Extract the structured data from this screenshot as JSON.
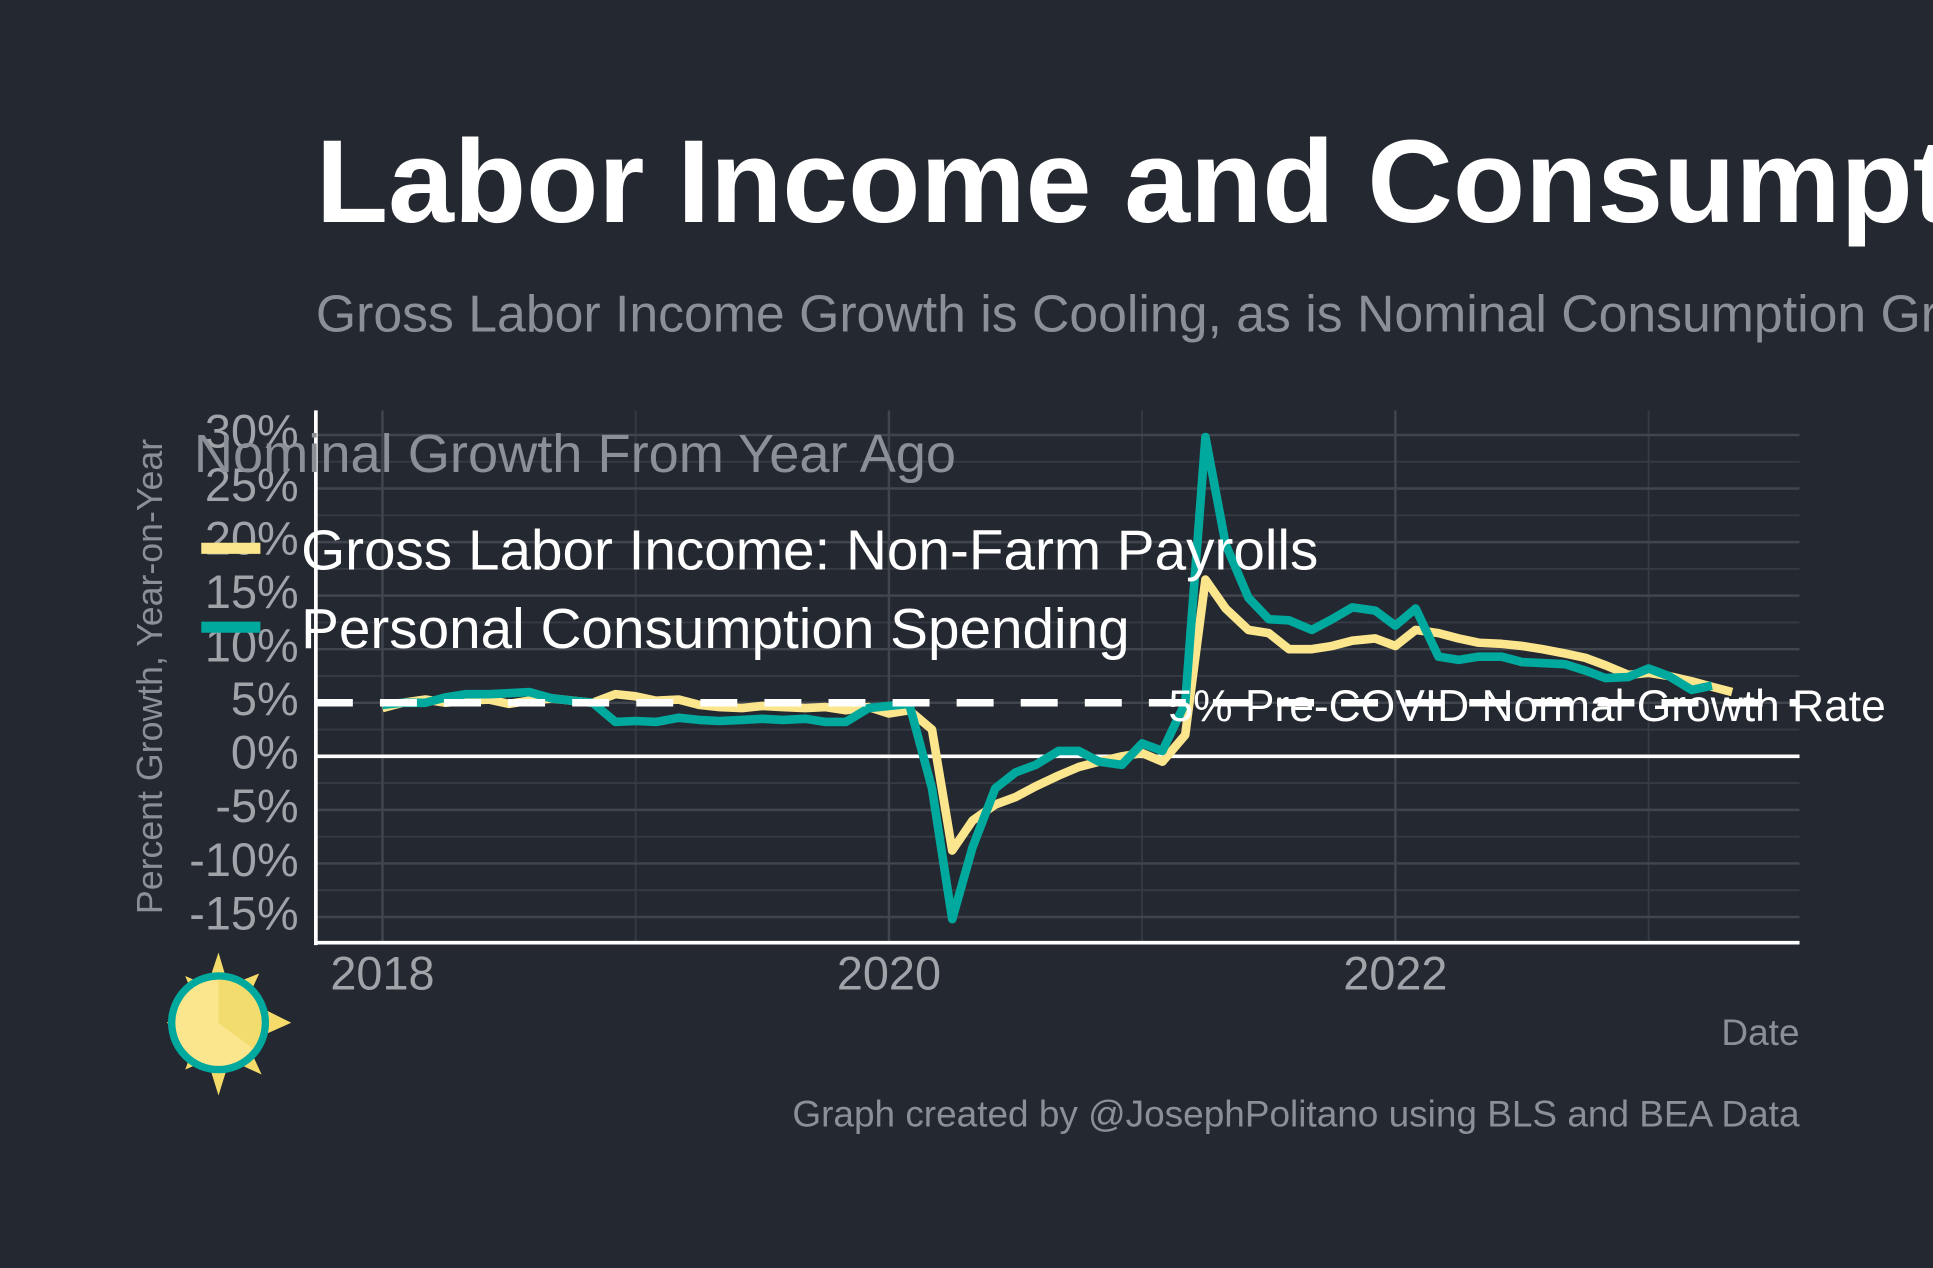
{
  "chart_data": {
    "type": "line",
    "title": "Labor Income and Consumption",
    "subtitle": "Gross Labor Income Growth is Cooling, as is Nominal Consumption Growth",
    "legend_title": "Nominal Growth From Year Ago",
    "y_label": "Percent Growth, Year-on-Year",
    "x_label": "Date",
    "caption": "Graph created by @JosephPolitano using BLS and BEA Data",
    "x": [
      2018,
      2018.08,
      2018.17,
      2018.25,
      2018.33,
      2018.42,
      2018.5,
      2018.58,
      2018.67,
      2018.75,
      2018.83,
      2018.92,
      2019,
      2019.08,
      2019.17,
      2019.25,
      2019.33,
      2019.42,
      2019.5,
      2019.58,
      2019.67,
      2019.75,
      2019.83,
      2019.92,
      2020,
      2020.08,
      2020.17,
      2020.25,
      2020.33,
      2020.42,
      2020.5,
      2020.58,
      2020.67,
      2020.75,
      2020.83,
      2020.92,
      2021,
      2021.08,
      2021.17,
      2021.25,
      2021.33,
      2021.42,
      2021.5,
      2021.58,
      2021.67,
      2021.75,
      2021.83,
      2021.92,
      2022,
      2022.08,
      2022.17,
      2022.25,
      2022.33,
      2022.42,
      2022.5,
      2022.58,
      2022.67,
      2022.75,
      2022.83,
      2022.92,
      2023,
      2023.08,
      2023.17,
      2023.25,
      2023.33
    ],
    "series": [
      {
        "name": "Gross Labor Income: Non-Farm Payrolls",
        "color": "#fbe58d",
        "values": [
          4.5,
          5.0,
          5.3,
          5.0,
          5.2,
          5.3,
          4.9,
          5.2,
          5.4,
          5.2,
          5.0,
          5.8,
          5.6,
          5.2,
          5.3,
          4.8,
          4.6,
          4.5,
          4.7,
          4.6,
          4.5,
          4.6,
          4.3,
          4.6,
          4.0,
          4.3,
          2.5,
          -8.8,
          -6.0,
          -4.5,
          -3.8,
          -2.8,
          -1.8,
          -1.0,
          -0.5,
          0.0,
          0.3,
          -0.5,
          2.0,
          16.5,
          13.8,
          11.8,
          11.5,
          10.0,
          10.0,
          10.3,
          10.8,
          11.0,
          10.3,
          11.8,
          11.5,
          11.0,
          10.6,
          10.5,
          10.3,
          10.0,
          9.6,
          9.2,
          8.5,
          7.6,
          7.8,
          7.5,
          7.0,
          6.5,
          6.0
        ]
      },
      {
        "name": "Personal Consumption Spending",
        "color": "#00a99d",
        "values": [
          4.8,
          5.0,
          5.0,
          5.5,
          5.8,
          5.8,
          5.9,
          6.0,
          5.4,
          5.2,
          5.0,
          3.2,
          3.3,
          3.2,
          3.6,
          3.4,
          3.3,
          3.4,
          3.5,
          3.4,
          3.5,
          3.2,
          3.2,
          4.5,
          4.7,
          4.9,
          -3.0,
          -15.2,
          -8.5,
          -3.0,
          -1.5,
          -0.8,
          0.5,
          0.5,
          -0.5,
          -0.8,
          1.2,
          0.5,
          5.0,
          29.8,
          19.8,
          14.8,
          12.8,
          12.7,
          11.8,
          12.8,
          13.9,
          13.6,
          12.2,
          13.8,
          9.3,
          9.0,
          9.3,
          9.3,
          8.8,
          8.7,
          8.6,
          8.0,
          7.3,
          7.4,
          8.2,
          7.5,
          6.2,
          6.6,
          null
        ]
      }
    ],
    "xlim": [
      2017.737,
      2023.596
    ],
    "xticks": [
      2018,
      2020,
      2022
    ],
    "xminorticks": [
      2019,
      2021,
      2023
    ],
    "ylim": [
      -17.4,
      32.3
    ],
    "yticks": [
      {
        "value": -15,
        "label": "-15%"
      },
      {
        "value": -10,
        "label": "-10%"
      },
      {
        "value": -5,
        "label": "-5%"
      },
      {
        "value": 0,
        "label": "0%"
      },
      {
        "value": 5,
        "label": "5%"
      },
      {
        "value": 10,
        "label": "10%"
      },
      {
        "value": 15,
        "label": "15%"
      },
      {
        "value": 20,
        "label": "20%"
      },
      {
        "value": 25,
        "label": "25%"
      },
      {
        "value": 30,
        "label": "30%"
      }
    ],
    "yminorticks": [
      -12.5,
      -7.5,
      -2.5,
      2.5,
      7.5,
      12.5,
      17.5,
      22.5,
      27.5
    ],
    "grid": true,
    "baseline": 0,
    "reference_line": {
      "value": 5,
      "label": "5% Pre-COVID Normal Growth Rate"
    }
  }
}
